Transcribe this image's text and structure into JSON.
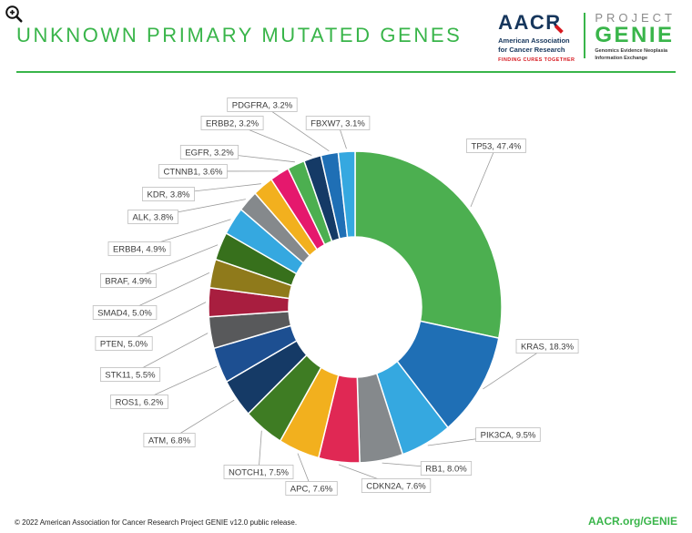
{
  "header": {
    "title": "UNKNOWN PRIMARY MUTATED GENES"
  },
  "brand": {
    "green": "#39b54a",
    "navy": "#16365c",
    "red": "#d71920"
  },
  "logos": {
    "aacr": {
      "wordmark": "AACR",
      "subtitle_line1": "American Association",
      "subtitle_line2": "for Cancer Research",
      "tagline": "FINDING CURES TOGETHER"
    },
    "genie": {
      "project": "PROJECT",
      "name": "GENIE",
      "subtitle_line1": "Genomics Evidence Neoplasia",
      "subtitle_line2": "Information Exchange"
    }
  },
  "chart_data": {
    "type": "pie",
    "variant": "donut",
    "title": "UNKNOWN PRIMARY MUTATED GENES",
    "unit": "%",
    "legend": "none",
    "label_style": "boxed callouts with leader lines, format GENE, VALUE%",
    "categories": [
      "TP53",
      "KRAS",
      "PIK3CA",
      "RB1",
      "CDKN2A",
      "APC",
      "NOTCH1",
      "ATM",
      "ROS1",
      "STK11",
      "PTEN",
      "SMAD4",
      "BRAF",
      "ERBB4",
      "ALK",
      "KDR",
      "CTNNB1",
      "EGFR",
      "ERBB2",
      "PDGFRA",
      "FBXW7"
    ],
    "values": [
      47.4,
      18.3,
      9.5,
      8.0,
      7.6,
      7.6,
      7.5,
      6.8,
      6.2,
      5.5,
      5.0,
      5.0,
      4.9,
      4.9,
      3.8,
      3.8,
      3.6,
      3.2,
      3.2,
      3.2,
      3.1
    ],
    "colors": [
      "#4caf50",
      "#1f6fb5",
      "#35a8e0",
      "#85898c",
      "#e02854",
      "#f2b01e",
      "#3e7c23",
      "#153a66",
      "#1d4f91",
      "#58595b",
      "#a81e3f",
      "#8f7a1b",
      "#37701c",
      "#35a8e0",
      "#85898c",
      "#f2b01e",
      "#e5186d",
      "#4caf50",
      "#153a66",
      "#1f6fb5",
      "#35a8e0"
    ],
    "start_angle_deg": 0,
    "direction": "clockwise"
  },
  "footer": {
    "copyright": "© 2022 American Association for Cancer Research Project GENIE v12.0 public release.",
    "link": "AACR.org/GENIE"
  }
}
